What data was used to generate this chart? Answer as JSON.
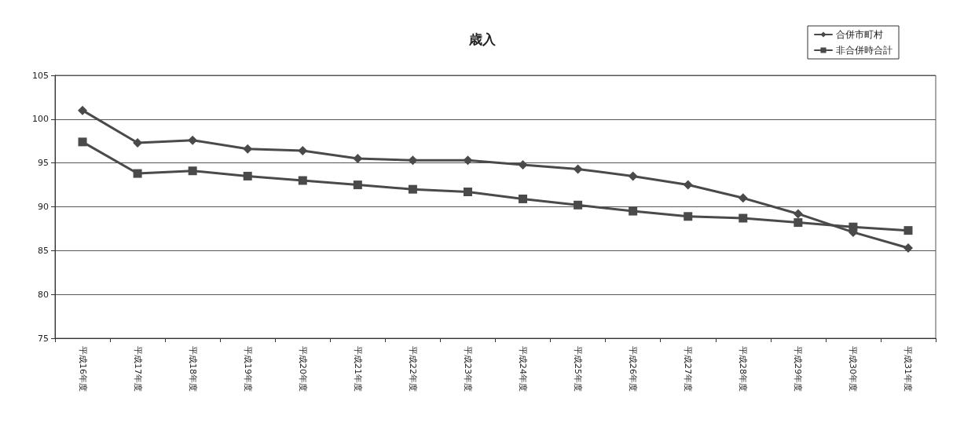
{
  "chart_data": {
    "type": "line",
    "title": "歳入",
    "categories": [
      "平成16年度",
      "平成17年度",
      "平成18年度",
      "平成19年度",
      "平成20年度",
      "平成21年度",
      "平成22年度",
      "平成23年度",
      "平成24年度",
      "平成25年度",
      "平成26年度",
      "平成27年度",
      "平成28年度",
      "平成29年度",
      "平成30年度",
      "平成31年度"
    ],
    "series": [
      {
        "name": "合併市町村",
        "color": "#4a4a4a",
        "marker": "diamond",
        "values": [
          101.0,
          97.3,
          97.6,
          96.6,
          96.4,
          95.5,
          95.3,
          95.3,
          94.8,
          94.3,
          93.5,
          92.5,
          91.0,
          89.2,
          87.1,
          85.3
        ]
      },
      {
        "name": "非合併時合計",
        "color": "#4a4a4a",
        "marker": "square",
        "values": [
          97.4,
          93.8,
          94.1,
          93.5,
          93.0,
          92.5,
          92.0,
          91.7,
          90.9,
          90.2,
          89.5,
          88.9,
          88.7,
          88.2,
          87.7,
          87.3
        ]
      }
    ],
    "ylim": [
      75,
      105
    ],
    "yticks": [
      75,
      80,
      85,
      90,
      95,
      100,
      105
    ],
    "grid": "y",
    "legend": "top right",
    "line_style": "solid"
  }
}
